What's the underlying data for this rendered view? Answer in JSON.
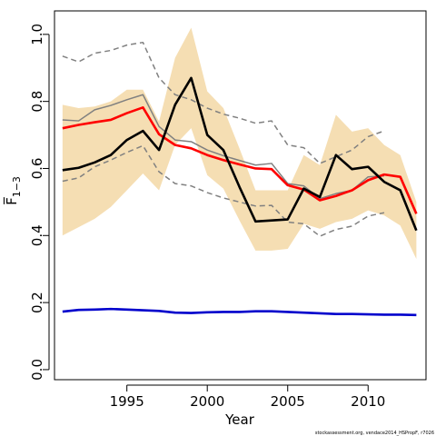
{
  "chart_data": {
    "type": "line",
    "title": "",
    "xlabel": "Year",
    "ylabel": "F̅",
    "ylabel_subscript": "1−3",
    "xlim": [
      1990.5,
      2013.6
    ],
    "ylim": [
      -0.03,
      1.07
    ],
    "xticks": [
      1995,
      2000,
      2005,
      2010
    ],
    "yticks": [
      0.0,
      0.2,
      0.4,
      0.6,
      0.8,
      1.0
    ],
    "ytick_labels": [
      "0.0",
      "0.2",
      "0.4",
      "0.6",
      "0.8",
      "1.0"
    ],
    "grid": false,
    "legend": "none",
    "footer": "stockassessment.org, vendace2014_HSPropF, r7026",
    "band": {
      "color": "#f5deb3",
      "x": [
        1991,
        1992,
        1993,
        1994,
        1995,
        1996,
        1997,
        1998,
        1999,
        2000,
        2001,
        2002,
        2003,
        2004,
        2005,
        2006,
        2007,
        2008,
        2009,
        2010,
        2011,
        2012,
        2013
      ],
      "upper": [
        0.79,
        0.78,
        0.785,
        0.8,
        0.835,
        0.835,
        0.74,
        0.93,
        1.02,
        0.83,
        0.78,
        0.66,
        0.535,
        0.535,
        0.535,
        0.64,
        0.61,
        0.76,
        0.71,
        0.72,
        0.67,
        0.64,
        0.5
      ],
      "lower": [
        0.4,
        0.425,
        0.45,
        0.485,
        0.535,
        0.585,
        0.535,
        0.67,
        0.72,
        0.58,
        0.54,
        0.445,
        0.355,
        0.355,
        0.36,
        0.435,
        0.42,
        0.44,
        0.45,
        0.475,
        0.46,
        0.43,
        0.33
      ]
    },
    "series": [
      {
        "color": "#ff0000",
        "width": 2.6,
        "dash": "",
        "x": [
          1991,
          1992,
          1993,
          1994,
          1995,
          1996,
          1997,
          1998,
          1999,
          2000,
          2001,
          2002,
          2003,
          2004,
          2005,
          2006,
          2007,
          2008,
          2009,
          2010,
          2011,
          2012,
          2013
        ],
        "values": [
          0.72,
          0.73,
          0.738,
          0.745,
          0.765,
          0.782,
          0.702,
          0.67,
          0.66,
          0.64,
          0.625,
          0.612,
          0.6,
          0.598,
          0.55,
          0.537,
          0.505,
          0.518,
          0.535,
          0.565,
          0.582,
          0.575,
          0.465
        ]
      },
      {
        "color": "#000000",
        "width": 2.6,
        "dash": "",
        "x": [
          1991,
          1992,
          1993,
          1994,
          1995,
          1996,
          1997,
          1998,
          1999,
          2000,
          2001,
          2002,
          2003,
          2004,
          2005,
          2006,
          2007,
          2008,
          2009,
          2010,
          2011,
          2012,
          2013
        ],
        "values": [
          0.595,
          0.602,
          0.618,
          0.64,
          0.685,
          0.712,
          0.655,
          0.79,
          0.87,
          0.7,
          0.655,
          0.545,
          0.442,
          0.445,
          0.448,
          0.54,
          0.515,
          0.64,
          0.598,
          0.605,
          0.56,
          0.535,
          0.415
        ]
      },
      {
        "color": "#808080",
        "width": 1.5,
        "dash": "",
        "x": [
          1991,
          1992,
          1993,
          1994,
          1995,
          1996,
          1997,
          1998,
          1999,
          2000,
          2001,
          2002,
          2003,
          2004,
          2005,
          2006,
          2007,
          2008,
          2009,
          2010,
          2011,
          2012,
          2013
        ],
        "values": [
          0.745,
          0.742,
          0.775,
          0.788,
          0.805,
          0.82,
          0.725,
          0.685,
          0.68,
          0.655,
          0.638,
          0.624,
          0.61,
          0.615,
          0.555,
          0.548,
          0.51,
          0.525,
          0.535,
          0.575,
          0.578,
          null,
          null
        ]
      },
      {
        "color": "#808080",
        "width": 1.5,
        "dash": "6,4",
        "x": [
          1991,
          1992,
          1993,
          1994,
          1995,
          1996,
          1997,
          1998,
          1999,
          2000,
          2001,
          2002,
          2003,
          2004,
          2005,
          2006,
          2007,
          2008,
          2009,
          2010,
          2011,
          2012,
          2013
        ],
        "values": [
          0.935,
          0.918,
          0.944,
          0.952,
          0.968,
          0.976,
          0.87,
          0.82,
          0.805,
          0.78,
          0.762,
          0.75,
          0.735,
          0.742,
          0.67,
          0.662,
          0.615,
          0.635,
          0.655,
          0.695,
          0.712,
          null,
          null
        ]
      },
      {
        "color": "#808080",
        "width": 1.5,
        "dash": "6,4",
        "x": [
          1991,
          1992,
          1993,
          1994,
          1995,
          1996,
          1997,
          1998,
          1999,
          2000,
          2001,
          2002,
          2003,
          2004,
          2005,
          2006,
          2007,
          2008,
          2009,
          2010,
          2011,
          2012,
          2013
        ],
        "values": [
          0.562,
          0.572,
          0.605,
          0.625,
          0.648,
          0.668,
          0.59,
          0.555,
          0.548,
          0.528,
          0.512,
          0.5,
          0.488,
          0.49,
          0.44,
          0.435,
          0.398,
          0.418,
          0.428,
          0.458,
          0.468,
          null,
          null
        ]
      },
      {
        "color": "#0000cc",
        "width": 2.6,
        "dash": "",
        "x": [
          1991,
          1992,
          1993,
          1994,
          1995,
          1996,
          1997,
          1998,
          1999,
          2000,
          2001,
          2002,
          2003,
          2004,
          2005,
          2006,
          2007,
          2008,
          2009,
          2010,
          2011,
          2012,
          2013
        ],
        "values": [
          0.173,
          0.178,
          0.179,
          0.181,
          0.179,
          0.177,
          0.175,
          0.17,
          0.169,
          0.171,
          0.172,
          0.172,
          0.174,
          0.174,
          0.172,
          0.17,
          0.168,
          0.166,
          0.166,
          0.165,
          0.164,
          0.164,
          0.163
        ]
      }
    ]
  }
}
